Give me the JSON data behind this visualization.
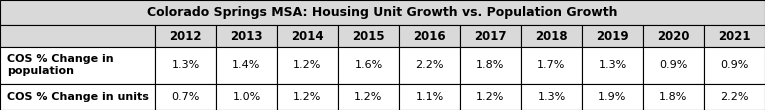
{
  "title": "Colorado Springs MSA: Housing Unit Growth vs. Population Growth",
  "years": [
    "2012",
    "2013",
    "2014",
    "2015",
    "2016",
    "2017",
    "2018",
    "2019",
    "2020",
    "2021"
  ],
  "row1_label": "COS % Change in\npopulation",
  "row2_label": "COS % Change in units",
  "row1_values": [
    "1.3%",
    "1.4%",
    "1.2%",
    "1.6%",
    "2.2%",
    "1.8%",
    "1.7%",
    "1.3%",
    "0.9%",
    "0.9%"
  ],
  "row2_values": [
    "0.7%",
    "1.0%",
    "1.2%",
    "1.2%",
    "1.1%",
    "1.2%",
    "1.3%",
    "1.9%",
    "1.8%",
    "2.2%"
  ],
  "header_bg": "#d9d9d9",
  "title_bg": "#d9d9d9",
  "cell_bg": "#ffffff",
  "border_color": "#000000",
  "title_fontsize": 9.0,
  "header_fontsize": 8.5,
  "cell_fontsize": 8.0,
  "label_fontsize": 8.0
}
